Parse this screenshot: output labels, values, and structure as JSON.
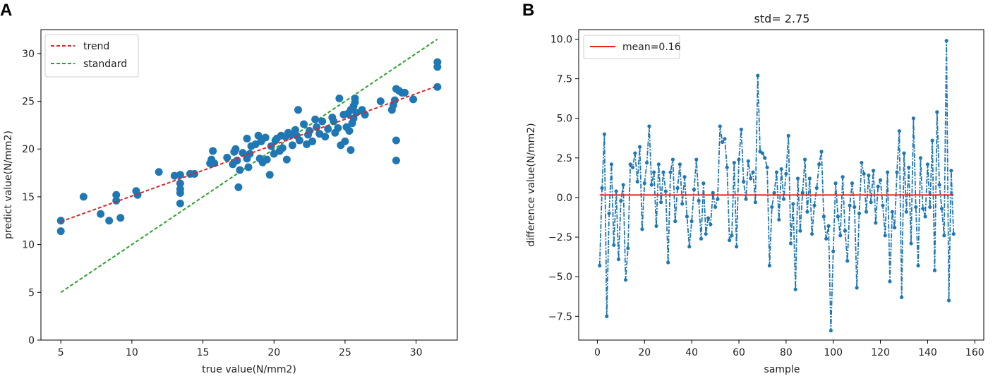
{
  "chart_data": [
    {
      "panel": "A",
      "type": "scatter",
      "title": "",
      "xlabel": "true value(N/mm2)",
      "ylabel": "predict value(N/mm2)",
      "xlim": [
        3.6,
        32.9
      ],
      "ylim": [
        0,
        32.5
      ],
      "xticks": [
        5,
        10,
        15,
        20,
        25,
        30
      ],
      "yticks": [
        0,
        5,
        10,
        15,
        20,
        25,
        30
      ],
      "point_color": "#1f77b4",
      "points": [
        [
          5,
          12.5
        ],
        [
          5,
          11.4
        ],
        [
          6.6,
          15
        ],
        [
          7.8,
          13.2
        ],
        [
          8.4,
          12.5
        ],
        [
          8.9,
          15.2
        ],
        [
          8.9,
          14.6
        ],
        [
          9.2,
          12.8
        ],
        [
          10.3,
          15.6
        ],
        [
          10.4,
          15.2
        ],
        [
          11.9,
          17.6
        ],
        [
          13,
          17.2
        ],
        [
          13.4,
          17.3
        ],
        [
          13.4,
          16.4
        ],
        [
          13.4,
          15.8
        ],
        [
          13.4,
          15.4
        ],
        [
          13.4,
          14.3
        ],
        [
          14.1,
          17.4
        ],
        [
          14.4,
          17.4
        ],
        [
          15.5,
          18.5
        ],
        [
          15.6,
          18.9
        ],
        [
          15.7,
          19.8
        ],
        [
          15.8,
          18.5
        ],
        [
          16.7,
          19.1
        ],
        [
          17.1,
          18.4
        ],
        [
          17.2,
          19.7
        ],
        [
          17.3,
          20
        ],
        [
          17.4,
          18.8
        ],
        [
          17.5,
          16
        ],
        [
          17.6,
          17.8
        ],
        [
          17.8,
          19.6
        ],
        [
          18.1,
          19
        ],
        [
          18.1,
          21.1
        ],
        [
          18.2,
          18.1
        ],
        [
          18.3,
          19.5
        ],
        [
          18.4,
          20.3
        ],
        [
          18.7,
          20.5
        ],
        [
          18.9,
          21.4
        ],
        [
          19,
          19
        ],
        [
          19.1,
          20.8
        ],
        [
          19.2,
          18.6
        ],
        [
          19.4,
          21.2
        ],
        [
          19.5,
          18.9
        ],
        [
          19.7,
          17.3
        ],
        [
          19.8,
          20.3
        ],
        [
          20,
          19.5
        ],
        [
          20.1,
          20.9
        ],
        [
          20.2,
          21.1
        ],
        [
          20.4,
          19.8
        ],
        [
          20.5,
          21.4
        ],
        [
          20.6,
          20.1
        ],
        [
          20.8,
          21.3
        ],
        [
          20.9,
          18.9
        ],
        [
          21,
          21.7
        ],
        [
          21.2,
          21.5
        ],
        [
          21.3,
          20.4
        ],
        [
          21.5,
          22
        ],
        [
          21.6,
          21.4
        ],
        [
          21.7,
          24.1
        ],
        [
          21.8,
          20.9
        ],
        [
          22.1,
          22.6
        ],
        [
          22.3,
          20.5
        ],
        [
          22.4,
          21.5
        ],
        [
          22.5,
          21.9
        ],
        [
          22.7,
          20.8
        ],
        [
          22.9,
          23.1
        ],
        [
          23,
          22.3
        ],
        [
          23.2,
          21.6
        ],
        [
          23.4,
          22.9
        ],
        [
          23.6,
          21.3
        ],
        [
          23.8,
          22.1
        ],
        [
          24.1,
          23.3
        ],
        [
          24.2,
          22.9
        ],
        [
          24.3,
          21.7
        ],
        [
          24.5,
          22.2
        ],
        [
          24.6,
          25.3
        ],
        [
          24.7,
          20.4
        ],
        [
          24.9,
          23.6
        ],
        [
          25,
          20.8
        ],
        [
          25.1,
          22.3
        ],
        [
          25.2,
          23.7
        ],
        [
          25.3,
          21.9
        ],
        [
          25.4,
          24.1
        ],
        [
          25.4,
          19.9
        ],
        [
          25.5,
          22.7
        ],
        [
          25.6,
          24.5
        ],
        [
          25.6,
          23.2
        ],
        [
          25.7,
          25.3
        ],
        [
          25.7,
          24.9
        ],
        [
          25.8,
          23.8
        ],
        [
          26.2,
          24.1
        ],
        [
          26.4,
          23.6
        ],
        [
          27.5,
          25
        ],
        [
          28.3,
          24.1
        ],
        [
          28.4,
          24.6
        ],
        [
          28.5,
          25.1
        ],
        [
          28.6,
          26.3
        ],
        [
          28.6,
          20.9
        ],
        [
          28.6,
          18.8
        ],
        [
          28.8,
          26.1
        ],
        [
          29,
          25.9
        ],
        [
          29.2,
          25.9
        ],
        [
          29.8,
          25.2
        ],
        [
          31.5,
          29.1
        ],
        [
          31.5,
          28.6
        ],
        [
          31.5,
          26.5
        ]
      ],
      "trend": {
        "label": "trend",
        "color": "#d62728",
        "from": [
          5,
          12.4
        ],
        "to": [
          31.5,
          26.6
        ]
      },
      "standard": {
        "label": "standard",
        "color": "#2ca02c",
        "from": [
          5,
          5
        ],
        "to": [
          31.5,
          31.5
        ]
      },
      "legend": {
        "position": "upper-left",
        "entries": [
          "trend",
          "standard"
        ]
      }
    },
    {
      "panel": "B",
      "type": "line",
      "title": "std= 2.75",
      "xlabel": "sample",
      "ylabel": "difference value(N/mm2)",
      "xlim": [
        -7.9,
        163.8
      ],
      "ylim": [
        -9.0,
        10.6
      ],
      "xticks": [
        0,
        20,
        40,
        60,
        80,
        100,
        120,
        140,
        160
      ],
      "yticks": [
        -7.5,
        -5.0,
        -2.5,
        0.0,
        2.5,
        5.0,
        7.5,
        10.0
      ],
      "ytick_labels": [
        "−7.5",
        "−5.0",
        "−2.5",
        "0.0",
        "2.5",
        "5.0",
        "7.5",
        "10.0"
      ],
      "line_color": "#1f77b4",
      "mean": {
        "label": "mean=0.16",
        "value": 0.16,
        "color": "#e8211f"
      },
      "legend": {
        "position": "upper-left",
        "entries": [
          "mean=0.16"
        ]
      },
      "values": [
        -4.3,
        0.6,
        4,
        -7.5,
        -1,
        2.1,
        -3,
        0.4,
        -3.9,
        -0.2,
        0.8,
        -5.2,
        -3.2,
        2.1,
        1.9,
        2.8,
        1,
        3.2,
        -2,
        0.9,
        2.2,
        4.5,
        0.8,
        1.6,
        -1.8,
        2.1,
        -0.3,
        1.6,
        0.4,
        -4.1,
        1.6,
        2.4,
        -1.5,
        0.6,
        2.1,
        -0.4,
        1.3,
        -1.2,
        -3.1,
        -1.5,
        0.5,
        2.4,
        -0.2,
        -2.6,
        0.9,
        -2.3,
        -1.3,
        -1.7,
        0.3,
        -0.6,
        -0.1,
        4.5,
        3.5,
        3.7,
        1.9,
        -2.7,
        -2.4,
        2.2,
        -3.1,
        2.4,
        4.3,
        1,
        -0.1,
        2.3,
        1.2,
        1.6,
        -0.3,
        7.7,
        2.9,
        2.8,
        2.5,
        1.9,
        -4.3,
        -0.6,
        0.3,
        1.6,
        -1.4,
        1.8,
        -0.1,
        1.5,
        3.9,
        -2.9,
        -0.4,
        -5.8,
        1.2,
        -2.1,
        0.3,
        2.4,
        -0.9,
        1.2,
        -2.3,
        -0.5,
        0.6,
        2.1,
        2.9,
        -1.2,
        -2.6,
        -1.8,
        -8.4,
        -3.4,
        0.9,
        -1.2,
        -2.4,
        1.3,
        -2.1,
        -4,
        -0.5,
        0.9,
        -0.6,
        -5.7,
        -1,
        2.2,
        1.5,
        -0.9,
        1.4,
        -0.3,
        1.7,
        -1.6,
        0.7,
        1.1,
        -0.5,
        -2.4,
        1.6,
        -5.3,
        -0.9,
        -1.9,
        1.6,
        4.2,
        -6.3,
        2.8,
        -0.9,
        1.9,
        -2.9,
        5,
        -0.6,
        -4.3,
        2.5,
        -0.7,
        -1.2,
        2.1,
        -0.6,
        3.6,
        -4.6,
        5.4,
        0.8,
        -0.7,
        -2.4,
        9.9,
        -6.5,
        1.7,
        -2.3
      ]
    }
  ],
  "panels": {
    "a_letter": "A",
    "b_letter": "B"
  }
}
